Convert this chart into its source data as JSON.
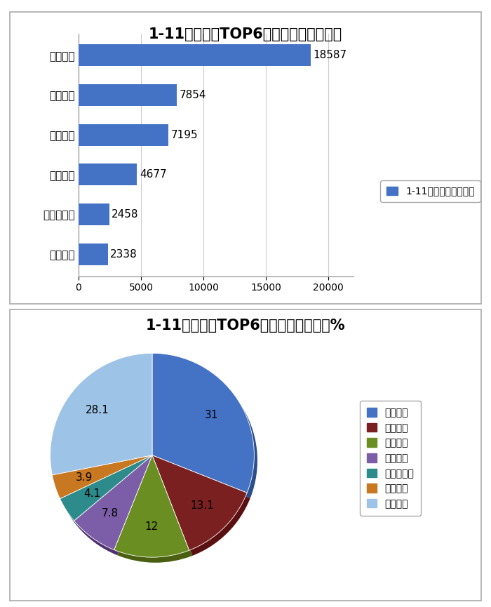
{
  "bar_title": "1-11月冷藏车TOP6企业累计销量（辆）",
  "bar_categories": [
    "山东汽车",
    "东风商用车",
    "中国重汽",
    "江淮汽车",
    "一汽解放",
    "福田汽车"
  ],
  "bar_values": [
    2338,
    2458,
    4677,
    7195,
    7854,
    18587
  ],
  "bar_color": "#4472C4",
  "bar_legend_label": "1-11月累计销量（辆）",
  "bar_xlim": [
    0,
    22000
  ],
  "bar_xticks": [
    0,
    5000,
    10000,
    15000,
    20000
  ],
  "pie_title": "1-11月冷藏车TOP6企业累计市场份额%",
  "pie_labels": [
    "福田汽车",
    "一汽解放",
    "江淮汽车",
    "中国重汽",
    "东风商用车",
    "山东汽车",
    "其余企业"
  ],
  "pie_values": [
    31,
    13.1,
    12,
    7.8,
    4.1,
    3.9,
    28.1
  ],
  "pie_colors": [
    "#4472C4",
    "#7B2020",
    "#6B8E23",
    "#7B5EA7",
    "#2E8B8B",
    "#C87820",
    "#9DC3E6"
  ],
  "pie_shadow_colors": [
    "#2A4F8A",
    "#5A1010",
    "#4A6010",
    "#503070",
    "#1A5A5A",
    "#8A5010",
    "#6A9AB6"
  ],
  "pie_startangle": 90,
  "bg_color": "#FFFFFF",
  "panel_border_color": "#AAAAAA",
  "grid_color": "#CCCCCC",
  "title_fontsize": 15,
  "label_fontsize": 11,
  "tick_fontsize": 10,
  "legend_fontsize": 10,
  "value_fontsize": 11
}
